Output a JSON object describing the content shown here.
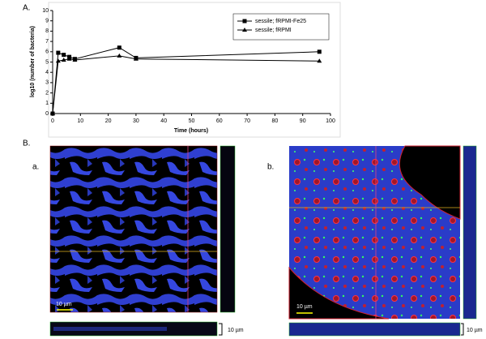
{
  "chart_data": {
    "type": "line",
    "panel_label": "A.",
    "x_label": "Time (hours)",
    "y_label": "log10 (number of bacteria)",
    "x": [
      0,
      2,
      4,
      6,
      8,
      24,
      30,
      96
    ],
    "series": [
      {
        "name": "sessile; fRPMI-Fe25",
        "color": "#000000",
        "marker": "square",
        "values": [
          0,
          5.9,
          5.7,
          5.5,
          5.3,
          6.4,
          5.4,
          6.0
        ]
      },
      {
        "name": "sessile; fRPMI",
        "color": "#000000",
        "marker": "triangle",
        "values": [
          0,
          5.1,
          5.2,
          5.3,
          5.2,
          5.6,
          5.3,
          5.1
        ]
      }
    ],
    "xlim": [
      0,
      100
    ],
    "xticks": [
      0,
      10,
      20,
      30,
      40,
      50,
      60,
      70,
      80,
      90,
      100
    ],
    "ylim": [
      0,
      10
    ],
    "yticks": [
      0,
      1,
      2,
      3,
      4,
      5,
      6,
      7,
      8,
      9,
      10
    ],
    "grid": false,
    "legend": "upper right"
  },
  "figure": {
    "panel_b": "B.",
    "sub_a": "a.",
    "sub_b": "b.",
    "scale_a": "10 µm",
    "scale_a_z": "10 µm",
    "scale_b": "10 µm",
    "scale_b_z": "10 µm"
  }
}
